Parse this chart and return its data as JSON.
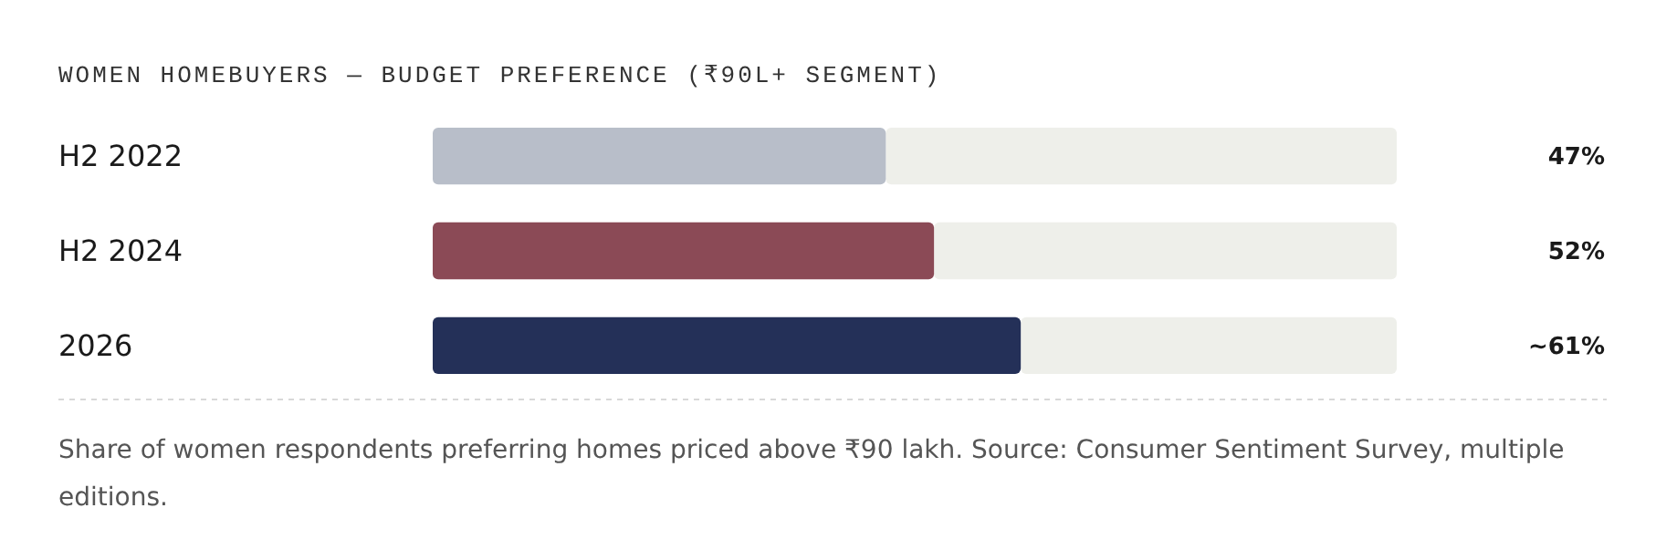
{
  "chart_data": {
    "type": "bar",
    "orientation": "horizontal",
    "title": "WOMEN HOMEBUYERS — BUDGET PREFERENCE (₹90L+ SEGMENT)",
    "categories": [
      "H2 2022",
      "H2 2024",
      "2026"
    ],
    "values": [
      47,
      52,
      61
    ],
    "colors": [
      "#b8bec9",
      "#8b4a56",
      "#243058"
    ],
    "value_labels": [
      "47%",
      "52%",
      "~61%"
    ],
    "xlim": [
      0,
      100
    ],
    "tick_labels": "y",
    "annotations": [
      "Share of women respondents preferring homes priced above ₹90 lakh. Source: Consumer Sentiment Survey, multiple editions."
    ]
  }
}
